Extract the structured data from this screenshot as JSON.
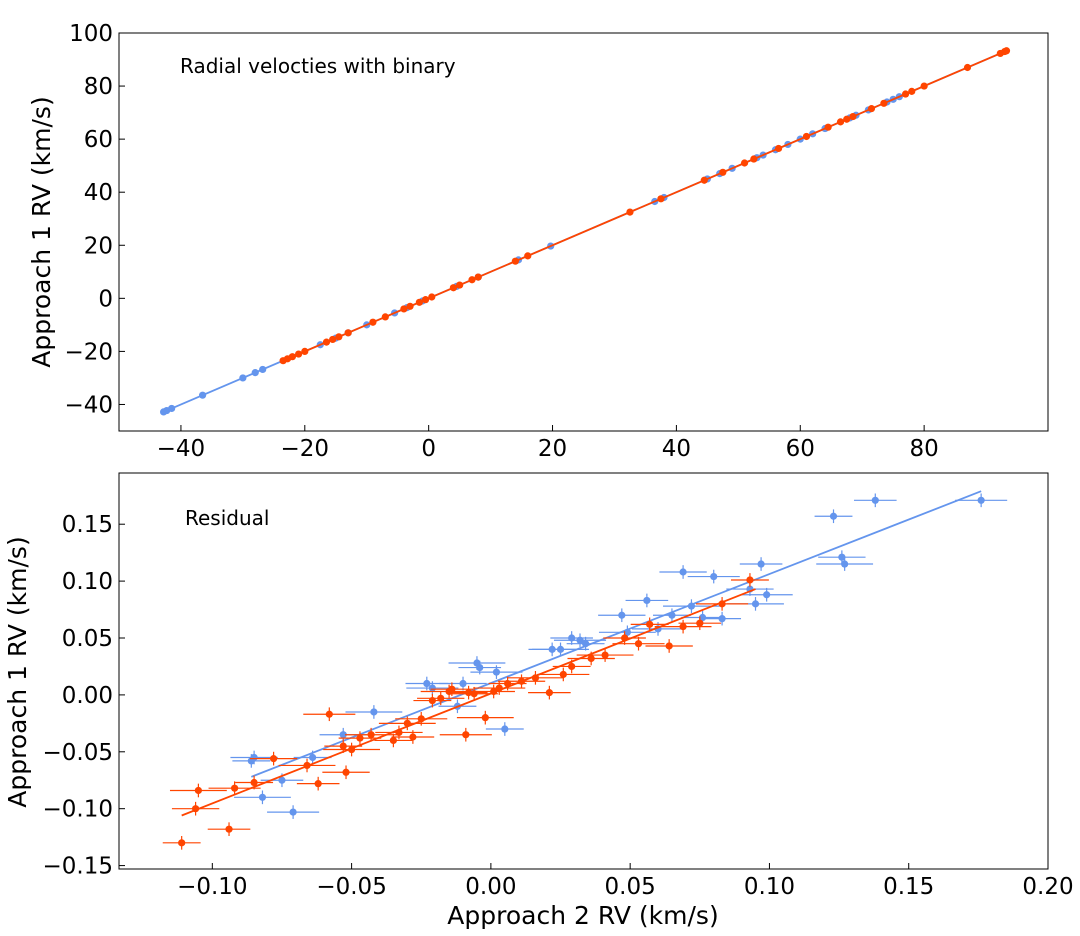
{
  "colors": {
    "series_a": "#6495ED",
    "series_b": "#FF4500"
  },
  "chart_data": [
    {
      "type": "scatter",
      "annotation": "Radial velocties with binary",
      "xlabel": "",
      "ylabel": "Approach 1 RV (km/s)",
      "xlim": [
        -50,
        100
      ],
      "ylim": [
        -50,
        100
      ],
      "xticks": [
        -40,
        -20,
        0,
        20,
        40,
        60,
        80
      ],
      "yticks": [
        -40,
        -20,
        0,
        20,
        40,
        60,
        80,
        100
      ],
      "xtick_labels": [
        "−40",
        "−20",
        "0",
        "20",
        "40",
        "60",
        "80"
      ],
      "ytick_labels": [
        "−40",
        "−20",
        "0",
        "20",
        "40",
        "60",
        "80",
        "100"
      ],
      "grid": false,
      "series": [
        {
          "color": "#6495ED",
          "fit": {
            "x": [
              -43,
              93
            ],
            "y": [
              -43,
              93
            ]
          },
          "x": [
            -42.8,
            -42.3,
            -41.5,
            -36.5,
            -30,
            -28,
            -26.8,
            -17.5,
            -15,
            -13,
            -10,
            -5.5,
            -3.5,
            -1,
            4.5,
            8,
            14.5,
            19.7,
            36.5,
            38,
            45,
            47,
            49,
            53,
            54,
            56,
            58,
            60,
            62,
            64,
            68,
            69,
            71,
            74,
            75,
            76
          ],
          "y": [
            -42.8,
            -42.3,
            -41.5,
            -36.5,
            -30,
            -28,
            -26.8,
            -17.5,
            -15,
            -13,
            -10,
            -5.5,
            -3.5,
            -1,
            4.5,
            8,
            14.5,
            19.7,
            36.5,
            38,
            45,
            47,
            49,
            53,
            54,
            56,
            58,
            60,
            62,
            64,
            68,
            69,
            71,
            74,
            75,
            76
          ]
        },
        {
          "color": "#FF4500",
          "fit": {
            "x": [
              -24,
              93
            ],
            "y": [
              -24,
              93
            ]
          },
          "x": [
            -23.5,
            -22.8,
            -22,
            -21,
            -20,
            -16.5,
            -15.5,
            -14.5,
            -13,
            -9,
            -7,
            -4,
            -3,
            -1.5,
            -0.5,
            0.5,
            4,
            5,
            7,
            8,
            14,
            16,
            32.5,
            37.5,
            44.5,
            47.5,
            51,
            52.5,
            56.5,
            61,
            64.5,
            66.5,
            67.5,
            68.5,
            71.5,
            73.5,
            77,
            78,
            80,
            87,
            92.3,
            93,
            93.3
          ],
          "y": [
            -23.5,
            -22.8,
            -22,
            -21,
            -20,
            -16.5,
            -15.5,
            -14.5,
            -13,
            -9,
            -7,
            -4,
            -3,
            -1.5,
            -0.5,
            0.5,
            4,
            5,
            7,
            8,
            14,
            16,
            32.5,
            37.5,
            44.5,
            47.5,
            51,
            52.5,
            56.5,
            61,
            64.5,
            66.5,
            67.5,
            68.5,
            71.5,
            73.5,
            77,
            78,
            80,
            87,
            92.3,
            93,
            93.3
          ]
        }
      ]
    },
    {
      "type": "scatter",
      "annotation": "Residual",
      "xlabel": "Approach 2 RV (km/s)",
      "ylabel": "Approach 1 RV (km/s)",
      "xlim": [
        -0.1335,
        0.2
      ],
      "ylim": [
        -0.153,
        0.195
      ],
      "xticks": [
        -0.1,
        -0.05,
        0.0,
        0.05,
        0.1,
        0.15,
        0.2
      ],
      "yticks": [
        -0.15,
        -0.1,
        -0.05,
        0.0,
        0.05,
        0.1,
        0.15
      ],
      "xtick_labels": [
        "−0.10",
        "−0.05",
        "0.00",
        "0.05",
        "0.10",
        "0.15",
        "0.20"
      ],
      "ytick_labels": [
        "−0.15",
        "−0.10",
        "−0.05",
        "0.00",
        "0.05",
        "0.10",
        "0.15"
      ],
      "grid": false,
      "series": [
        {
          "color": "#6495ED",
          "fit": {
            "x": [
              -0.086,
              0.176
            ],
            "y": [
              -0.072,
              0.179
            ]
          },
          "x": [
            -0.086,
            -0.085,
            -0.082,
            -0.075,
            -0.071,
            -0.064,
            -0.053,
            -0.042,
            -0.023,
            -0.021,
            -0.012,
            -0.01,
            -0.005,
            -0.004,
            0.002,
            0.005,
            0.022,
            0.025,
            0.029,
            0.032,
            0.034,
            0.047,
            0.049,
            0.056,
            0.06,
            0.065,
            0.069,
            0.072,
            0.076,
            0.08,
            0.083,
            0.093,
            0.095,
            0.097,
            0.099,
            0.123,
            0.126,
            0.127,
            0.138,
            0.176
          ],
          "y": [
            -0.058,
            -0.055,
            -0.09,
            -0.075,
            -0.103,
            -0.055,
            -0.035,
            -0.015,
            0.01,
            0.006,
            -0.01,
            0.01,
            0.028,
            0.024,
            0.02,
            -0.03,
            0.04,
            0.04,
            0.05,
            0.048,
            0.045,
            0.07,
            0.055,
            0.083,
            0.058,
            0.07,
            0.108,
            0.078,
            0.068,
            0.104,
            0.067,
            0.093,
            0.08,
            0.115,
            0.088,
            0.157,
            0.121,
            0.115,
            0.171,
            0.171
          ]
        },
        {
          "color": "#FF4500",
          "fit": {
            "x": [
              -0.111,
              0.095
            ],
            "y": [
              -0.106,
              0.093
            ]
          },
          "x": [
            -0.111,
            -0.106,
            -0.105,
            -0.094,
            -0.092,
            -0.085,
            -0.078,
            -0.066,
            -0.062,
            -0.058,
            -0.053,
            -0.052,
            -0.05,
            -0.047,
            -0.043,
            -0.035,
            -0.033,
            -0.03,
            -0.028,
            -0.025,
            -0.021,
            -0.018,
            -0.015,
            -0.014,
            -0.009,
            -0.008,
            -0.006,
            -0.002,
            0.001,
            0.003,
            0.006,
            0.011,
            0.016,
            0.021,
            0.026,
            0.029,
            0.036,
            0.041,
            0.048,
            0.053,
            0.057,
            0.064,
            0.069,
            0.075,
            0.083,
            0.093
          ],
          "y": [
            -0.13,
            -0.1,
            -0.084,
            -0.118,
            -0.082,
            -0.077,
            -0.056,
            -0.062,
            -0.078,
            -0.017,
            -0.045,
            -0.068,
            -0.048,
            -0.038,
            -0.035,
            -0.04,
            -0.033,
            -0.025,
            -0.037,
            -0.021,
            -0.005,
            -0.003,
            0.003,
            0.005,
            -0.035,
            0.002,
            0.001,
            -0.02,
            0.003,
            0.006,
            0.01,
            0.012,
            0.015,
            0.002,
            0.018,
            0.025,
            0.032,
            0.035,
            0.05,
            0.045,
            0.062,
            0.043,
            0.06,
            0.063,
            0.08,
            0.101
          ]
        }
      ]
    }
  ]
}
